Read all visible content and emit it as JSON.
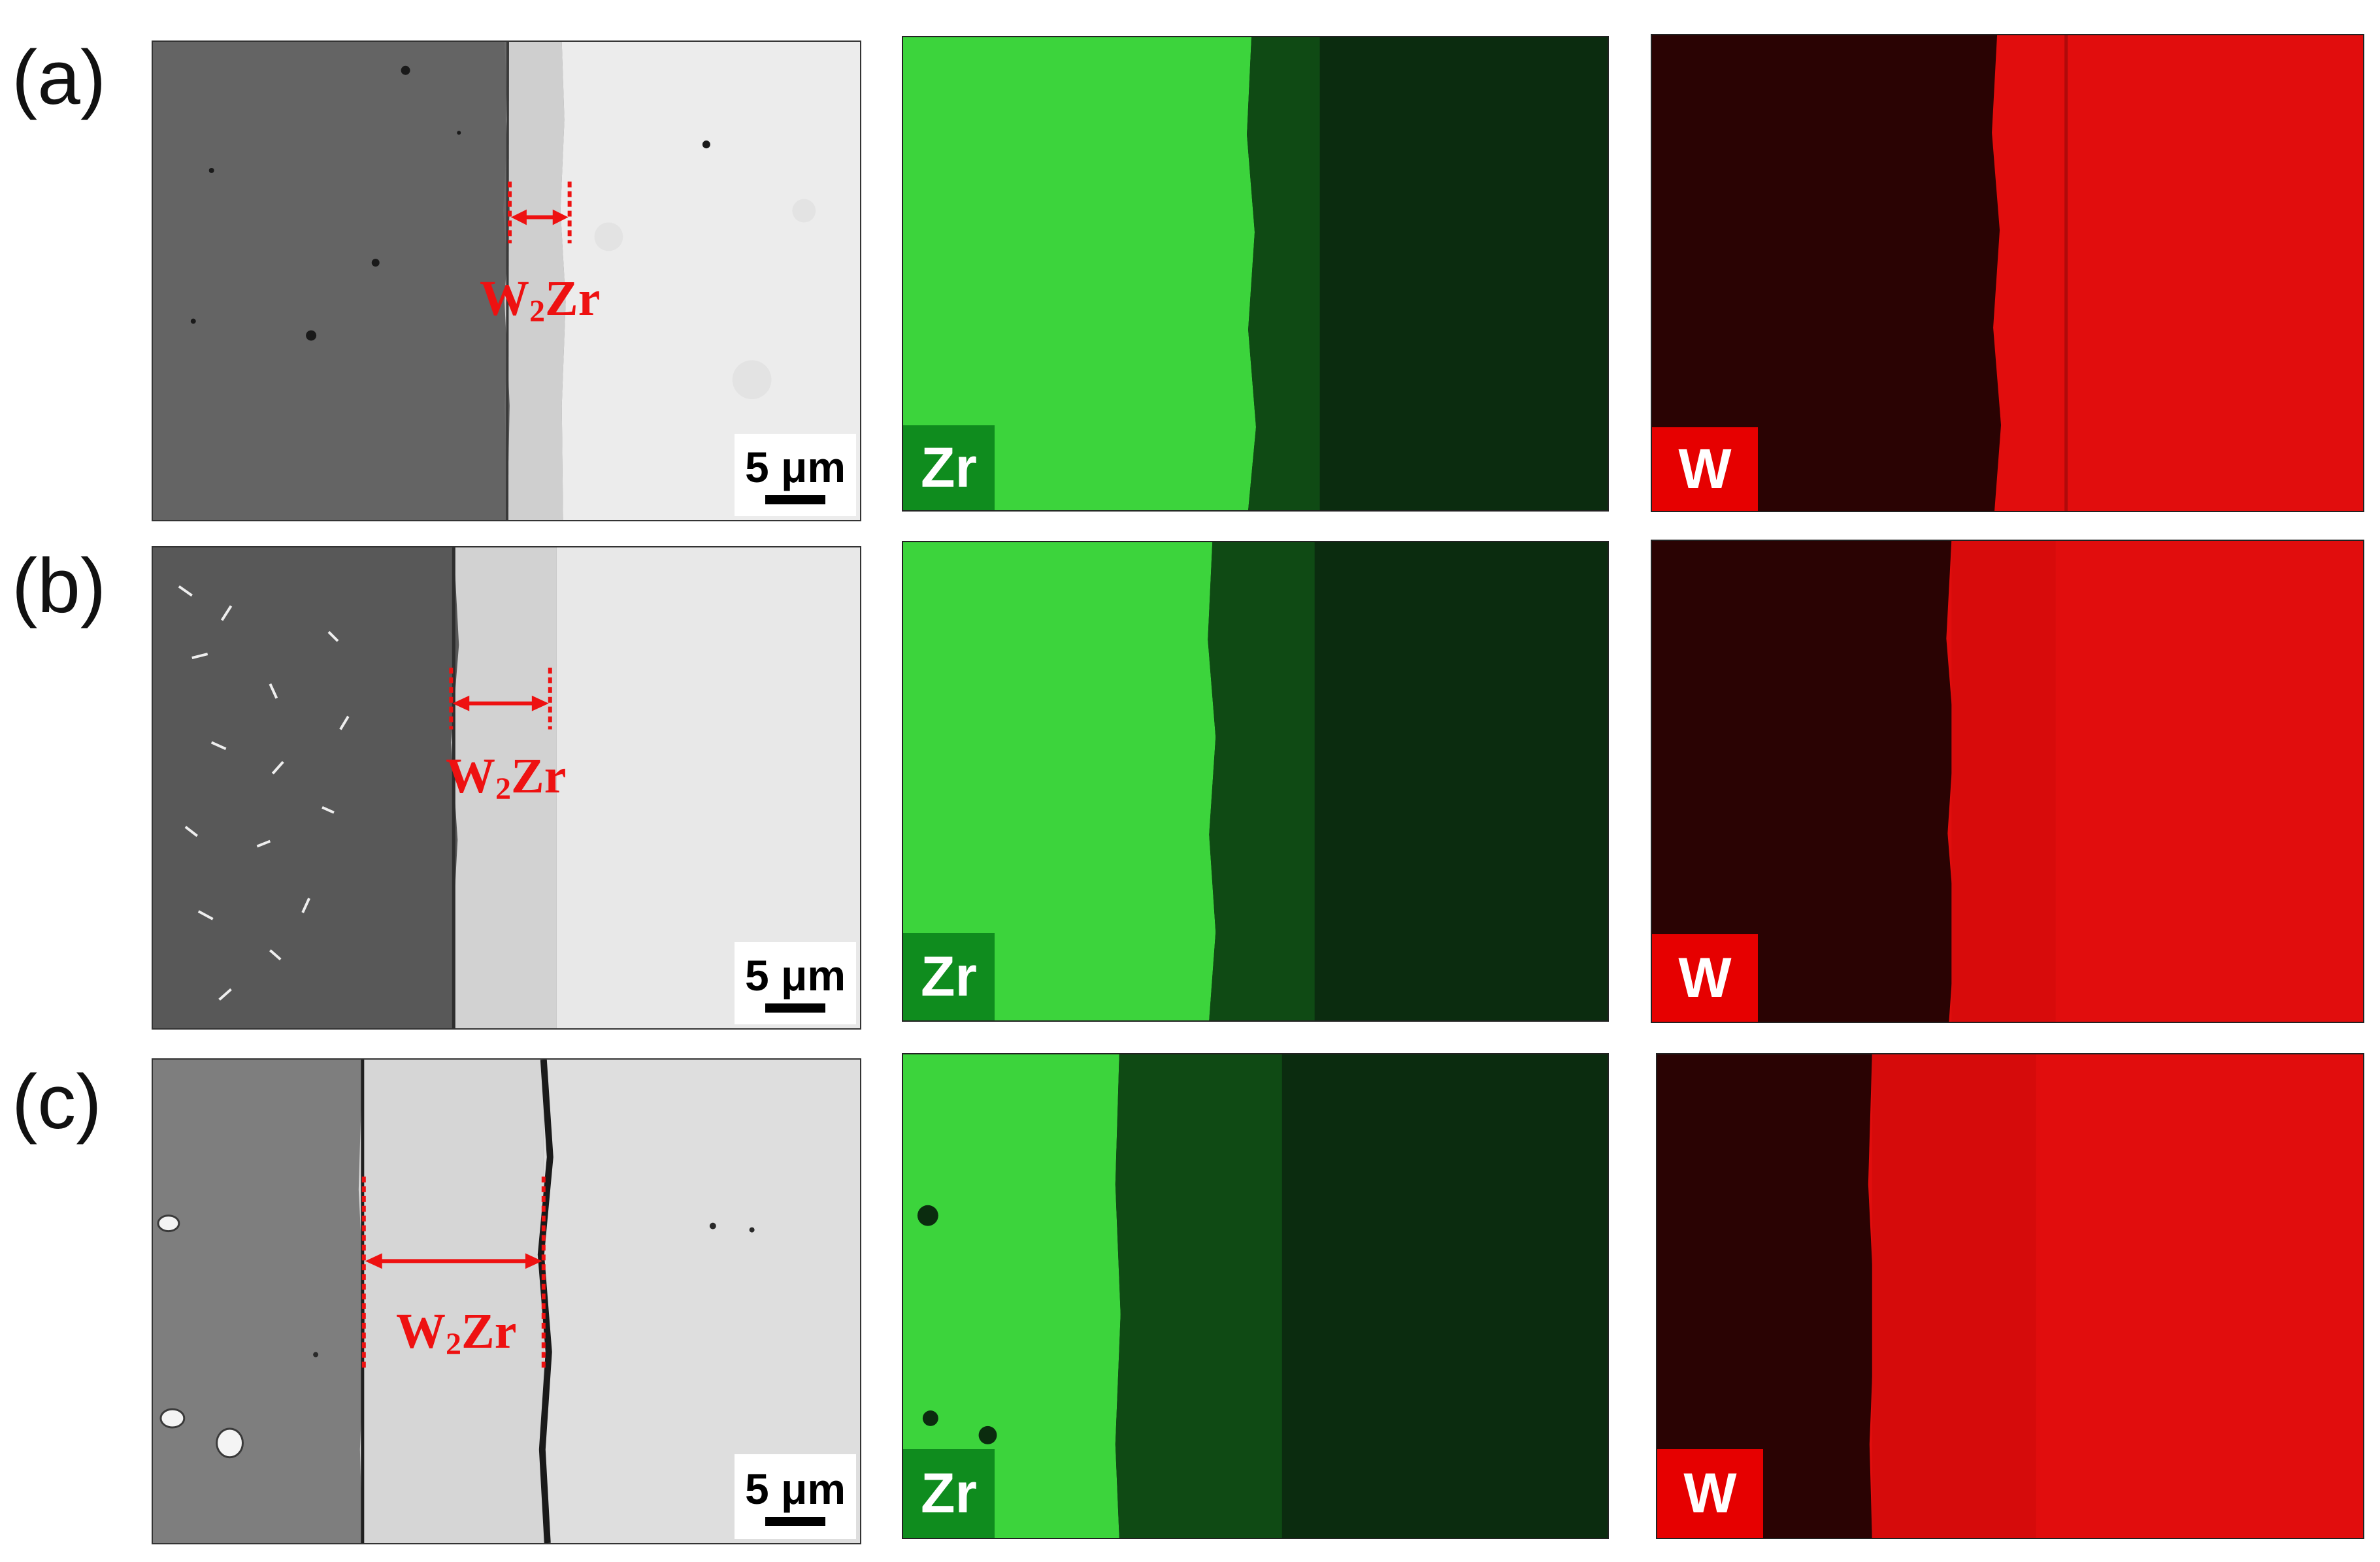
{
  "rows": [
    {
      "label": "(a)",
      "sem": {
        "phase_element": "W",
        "phase_subscript": "2",
        "phase_suffix": "Zr",
        "scale_text": "5 μm"
      },
      "maps": [
        {
          "element": "Zr",
          "color": "#1ecc1e"
        },
        {
          "element": "W",
          "color": "#e60000"
        }
      ]
    },
    {
      "label": "(b)",
      "sem": {
        "phase_element": "W",
        "phase_subscript": "2",
        "phase_suffix": "Zr",
        "scale_text": "5 μm"
      },
      "maps": [
        {
          "element": "Zr",
          "color": "#1ecc1e"
        },
        {
          "element": "W",
          "color": "#e60000"
        }
      ]
    },
    {
      "label": "(c)",
      "sem": {
        "phase_element": "W",
        "phase_subscript": "2",
        "phase_suffix": "Zr",
        "scale_text": "5 μm"
      },
      "maps": [
        {
          "element": "Zr",
          "color": "#1ecc1e"
        },
        {
          "element": "W",
          "color": "#e60000"
        }
      ]
    }
  ],
  "colors": {
    "zr_map_bright": "#3cd43c",
    "zr_map_mid": "#0f4a14",
    "zr_map_dark": "#0b2c0f",
    "zr_label_box": "#0f8c1e",
    "w_map_dark": "#2a0303",
    "w_map_bright": "#e10d0d",
    "w_label_box": "#e60000",
    "annotation_red": "#ee1111"
  }
}
